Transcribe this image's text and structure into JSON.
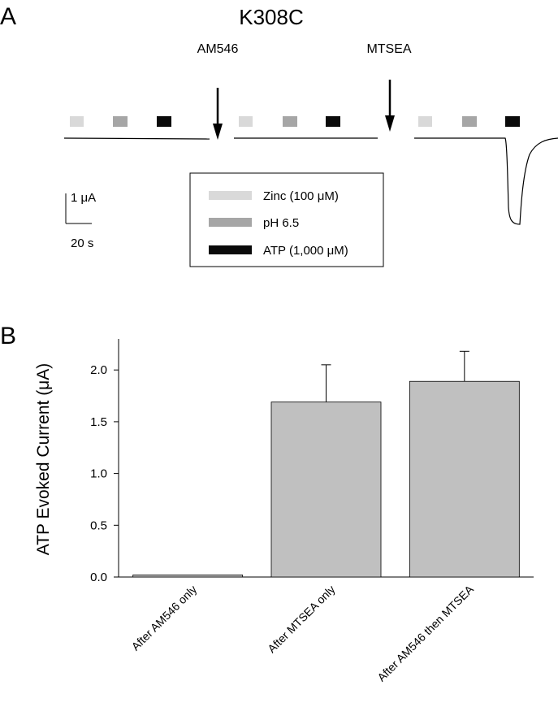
{
  "panel_a": {
    "letter": "A",
    "title": "K308C",
    "arrow_labels": [
      "AM546",
      "MTSEA"
    ],
    "scale_bar": {
      "current_label": "1 μA",
      "time_label": "20 s"
    },
    "legend": [
      {
        "label": "Zinc (100 μM)",
        "color": "#d9d9d9"
      },
      {
        "label": "pH 6.5",
        "color": "#a6a6a6"
      },
      {
        "label": "ATP (1,000 μM)",
        "color": "#0a0a0a"
      }
    ]
  },
  "panel_b": {
    "letter": "B"
  },
  "chart_data": {
    "type": "bar",
    "categories": [
      "After AM546 only",
      "After MTSEA only",
      "After AM546 then MTSEA"
    ],
    "values": [
      0.02,
      1.69,
      1.89
    ],
    "errors": [
      0.0,
      0.36,
      0.29
    ],
    "ylabel": "ATP Evoked Current  (μA)",
    "xlabel": "",
    "ylim": [
      0,
      2.3
    ],
    "yticks": [
      "0.0",
      "0.5",
      "1.0",
      "1.5",
      "2.0"
    ],
    "bar_color": "#c0c0c0",
    "grid": false
  }
}
